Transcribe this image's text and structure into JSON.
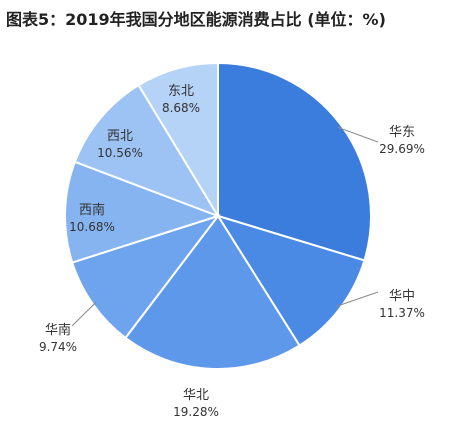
{
  "chart_data": {
    "type": "pie",
    "title": "图表5：2019年我国分地区能源消费占比 (单位：%)",
    "categories": [
      "华东",
      "华中",
      "华北",
      "华南",
      "西南",
      "西北",
      "东北"
    ],
    "values": [
      29.69,
      11.37,
      19.28,
      9.74,
      10.68,
      10.56,
      8.68
    ],
    "value_labels": [
      "29.69%",
      "11.37%",
      "19.28%",
      "9.74%",
      "10.68%",
      "10.56%",
      "8.68%"
    ],
    "colors": [
      "#3b7ddd",
      "#4a8ae5",
      "#5d98ea",
      "#6ea4ee",
      "#86b4f1",
      "#9dc3f4",
      "#b5d2f7"
    ],
    "start_angle_deg": 0,
    "direction": "clockwise",
    "legend": "none"
  }
}
